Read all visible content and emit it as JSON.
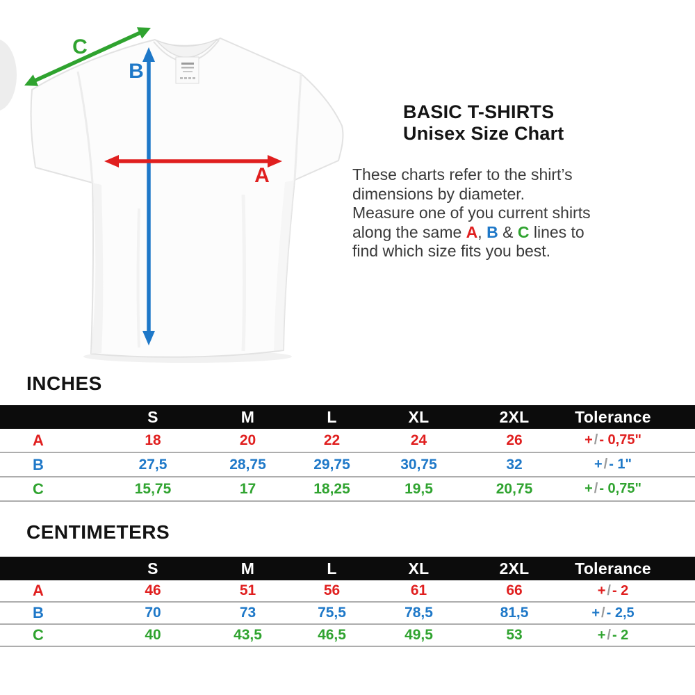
{
  "page_title": {
    "line1": "BASIC T-SHIRTS",
    "line2": "Unisex Size Chart"
  },
  "description": {
    "line1": "These charts refer to the shirt’s",
    "line2": "dimensions by diameter.",
    "line3": "Measure one of you current shirts",
    "line4_pre": "along the same ",
    "letter_a": "A",
    "sep1": ", ",
    "letter_b": "B",
    "sep2": " & ",
    "letter_c": "C",
    "line4_post": " lines to",
    "line5": "find which size fits you best."
  },
  "diagram": {
    "label_a": "A",
    "label_b": "B",
    "label_c": "C",
    "color_a": "#e01f1f",
    "color_b": "#1e78c8",
    "color_c": "#2fa32f"
  },
  "tables": {
    "inches": {
      "title": "INCHES",
      "columns": [
        "S",
        "M",
        "L",
        "XL",
        "2XL",
        "Tolerance"
      ],
      "rows": [
        {
          "label": "A",
          "values": [
            "18",
            "20",
            "22",
            "24",
            "26"
          ],
          "tolerance": "+/- 0,75\""
        },
        {
          "label": "B",
          "values": [
            "27,5",
            "28,75",
            "29,75",
            "30,75",
            "32"
          ],
          "tolerance": "+/- 1\""
        },
        {
          "label": "C",
          "values": [
            "15,75",
            "17",
            "18,25",
            "19,5",
            "20,75"
          ],
          "tolerance": "+/- 0,75\""
        }
      ]
    },
    "centimeters": {
      "title": "CENTIMETERS",
      "columns": [
        "S",
        "M",
        "L",
        "XL",
        "2XL",
        "Tolerance"
      ],
      "rows": [
        {
          "label": "A",
          "values": [
            "46",
            "51",
            "56",
            "61",
            "66"
          ],
          "tolerance": "+/- 2"
        },
        {
          "label": "B",
          "values": [
            "70",
            "73",
            "75,5",
            "78,5",
            "81,5"
          ],
          "tolerance": "+/- 2,5"
        },
        {
          "label": "C",
          "values": [
            "40",
            "43,5",
            "46,5",
            "49,5",
            "53"
          ],
          "tolerance": "+/- 2"
        }
      ]
    }
  },
  "ui_colors": {
    "header_bar": "#0c0c0c",
    "divider": "#adadad",
    "body_text": "#3a3a3a",
    "title_text": "#141414"
  }
}
